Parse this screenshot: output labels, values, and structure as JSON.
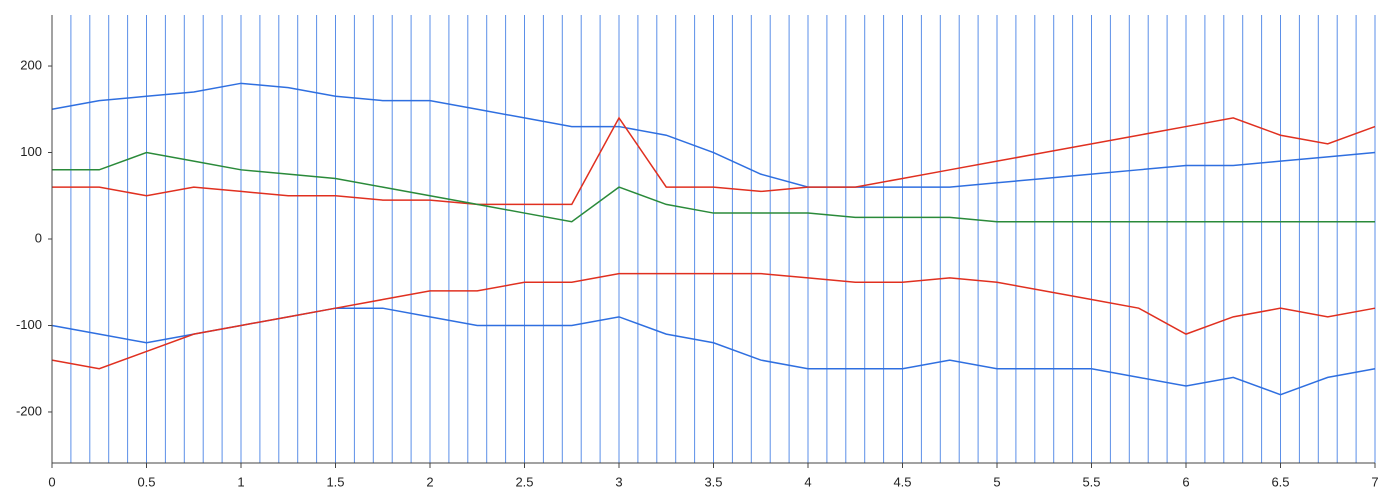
{
  "chart_data": {
    "type": "line",
    "x": [
      0,
      0.25,
      0.5,
      0.75,
      1,
      1.25,
      1.5,
      1.75,
      2,
      2.25,
      2.5,
      2.75,
      3,
      3.25,
      3.5,
      3.75,
      4,
      4.25,
      4.5,
      4.75,
      5,
      5.25,
      5.5,
      5.75,
      6,
      6.25,
      6.5,
      6.75,
      7
    ],
    "series": [
      {
        "color": "#2f6fe0",
        "values": [
          150,
          160,
          165,
          170,
          180,
          175,
          165,
          160,
          160,
          150,
          140,
          130,
          130,
          120,
          100,
          75,
          60,
          60,
          60,
          60,
          65,
          70,
          75,
          80,
          85,
          85,
          90,
          95,
          100
        ]
      },
      {
        "color": "#2f6fe0",
        "values": [
          -100,
          -110,
          -120,
          -110,
          -100,
          -90,
          -80,
          -80,
          -90,
          -100,
          -100,
          -100,
          -90,
          -110,
          -120,
          -140,
          -150,
          -150,
          -150,
          -140,
          -150,
          -150,
          -150,
          -160,
          -170,
          -160,
          -180,
          -160,
          -150
        ]
      },
      {
        "color": "#e03020",
        "values": [
          60,
          60,
          50,
          60,
          55,
          50,
          50,
          45,
          45,
          40,
          40,
          40,
          140,
          60,
          60,
          55,
          60,
          60,
          70,
          80,
          90,
          100,
          110,
          120,
          130,
          140,
          120,
          110,
          130
        ]
      },
      {
        "color": "#e03020",
        "values": [
          -140,
          -150,
          -130,
          -110,
          -100,
          -90,
          -80,
          -70,
          -60,
          -60,
          -50,
          -50,
          -40,
          -40,
          -40,
          -40,
          -45,
          -50,
          -50,
          -45,
          -50,
          -60,
          -70,
          -80,
          -110,
          -90,
          -80,
          -90,
          -80
        ]
      },
      {
        "color": "#2a8a3a",
        "values": [
          80,
          80,
          100,
          90,
          80,
          75,
          70,
          60,
          50,
          40,
          30,
          20,
          60,
          40,
          30,
          30,
          30,
          25,
          25,
          25,
          20,
          20,
          20,
          20,
          20,
          20,
          20,
          20,
          20
        ]
      }
    ],
    "vlines": [
      0,
      0.1,
      0.2,
      0.3,
      0.4,
      0.5,
      0.6,
      0.7,
      0.8,
      0.9,
      1,
      1.1,
      1.2,
      1.3,
      1.4,
      1.5,
      1.6,
      1.7,
      1.8,
      1.9,
      2,
      2.1,
      2.2,
      2.3,
      2.4,
      2.5,
      2.6,
      2.7,
      2.8,
      2.9,
      3,
      3.1,
      3.2,
      3.3,
      3.4,
      3.5,
      3.6,
      3.7,
      3.8,
      3.9,
      4,
      4.1,
      4.2,
      4.3,
      4.4,
      4.5,
      4.6,
      4.7,
      4.8,
      4.9,
      5,
      5.1,
      5.2,
      5.3,
      5.4,
      5.5,
      5.6,
      5.7,
      5.8,
      5.9,
      6,
      6.1,
      6.2,
      6.3,
      6.4,
      6.5,
      6.6,
      6.7,
      6.8,
      6.9,
      7
    ],
    "vline_color": "#5b8fe8",
    "xlim": [
      0,
      7
    ],
    "xticks": [
      0,
      0.5,
      1,
      1.5,
      2,
      2.5,
      3,
      3.5,
      4,
      4.5,
      5,
      5.5,
      6,
      6.5,
      7
    ],
    "ylim": [
      -259,
      259
    ],
    "yticks": [
      -200,
      -100,
      0,
      100,
      200
    ]
  }
}
